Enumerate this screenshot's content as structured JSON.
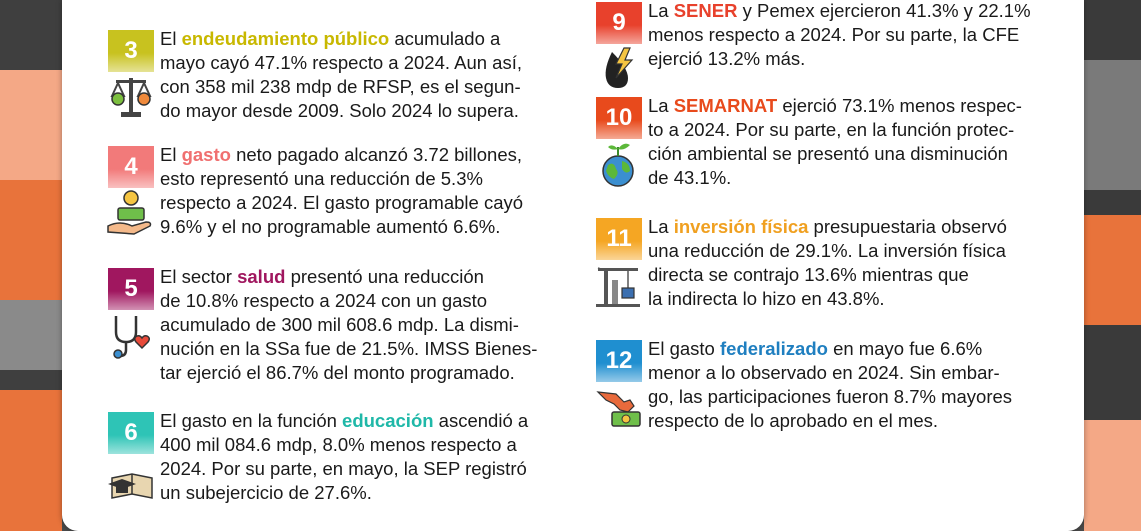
{
  "items": [
    {
      "number": "3",
      "icon": "scale-money-icon",
      "color": "#c8c21f",
      "highlight_color": "#c8b800",
      "lines": [
        {
          "pre": "El ",
          "hl": "endeudamiento público",
          "post": " acumulado a"
        },
        {
          "pre": "mayo cayó 47.1% respecto a 2024. Aun así,",
          "hl": "",
          "post": ""
        },
        {
          "pre": "con 358 mil 238 mdp de RFSP, es el segun-",
          "hl": "",
          "post": ""
        },
        {
          "pre": "do mayor desde 2009. Solo 2024 lo supera.",
          "hl": "",
          "post": ""
        }
      ]
    },
    {
      "number": "4",
      "icon": "hand-money-icon",
      "color": "#f27a7a",
      "highlight_color": "#f07070",
      "lines": [
        {
          "pre": "El ",
          "hl": "gasto",
          "post": " neto pagado alcanzó 3.72 billones,"
        },
        {
          "pre": "esto representó una reducción de 5.3%",
          "hl": "",
          "post": ""
        },
        {
          "pre": "respecto a 2024. El gasto programable cayó",
          "hl": "",
          "post": ""
        },
        {
          "pre": "9.6% y el no programable aumentó 6.6%.",
          "hl": "",
          "post": ""
        }
      ]
    },
    {
      "number": "5",
      "icon": "stethoscope-heart-icon",
      "color": "#a0175f",
      "highlight_color": "#a0175f",
      "lines": [
        {
          "pre": "El sector ",
          "hl": "salud",
          "post": " presentó una reducción"
        },
        {
          "pre": "de 10.8% respecto a 2024 con un gasto",
          "hl": "",
          "post": ""
        },
        {
          "pre": "acumulado de 300 mil 608.6 mdp. La dismi-",
          "hl": "",
          "post": ""
        },
        {
          "pre": "nución en la SSa fue de 21.5%. IMSS Bienes-",
          "hl": "",
          "post": ""
        },
        {
          "pre": "tar ejerció el 86.7% del monto programado.",
          "hl": "",
          "post": ""
        }
      ]
    },
    {
      "number": "6",
      "icon": "book-graduation-icon",
      "color": "#2ec4b6",
      "highlight_color": "#1fb8a8",
      "lines": [
        {
          "pre": "El gasto en la función ",
          "hl": "educación",
          "post": " ascendió a"
        },
        {
          "pre": "400 mil 084.6 mdp, 8.0% menos respecto a",
          "hl": "",
          "post": ""
        },
        {
          "pre": "2024. Por su parte, en mayo, la SEP registró",
          "hl": "",
          "post": ""
        },
        {
          "pre": "un subejercicio de 27.6%.",
          "hl": "",
          "post": ""
        }
      ]
    },
    {
      "number": "9",
      "icon": "energy-oil-icon",
      "color": "#e8412c",
      "highlight_color": "#e8412c",
      "lines": [
        {
          "pre": "La ",
          "hl": "SENER",
          "post": " y Pemex ejercieron 41.3% y 22.1%"
        },
        {
          "pre": "menos respecto a 2024. Por su parte, la CFE",
          "hl": "",
          "post": ""
        },
        {
          "pre": "ejerció 13.2% más.",
          "hl": "",
          "post": ""
        }
      ]
    },
    {
      "number": "10",
      "icon": "globe-plant-icon",
      "color": "#e84a1c",
      "highlight_color": "#e84a1c",
      "lines": [
        {
          "pre": "La ",
          "hl": "SEMARNAT",
          "post": " ejerció 73.1%  menos respec-"
        },
        {
          "pre": "to a 2024. Por su parte, en la función protec-",
          "hl": "",
          "post": ""
        },
        {
          "pre": "ción ambiental se presentó una disminución",
          "hl": "",
          "post": ""
        },
        {
          "pre": "de 43.1%.",
          "hl": "",
          "post": ""
        }
      ]
    },
    {
      "number": "11",
      "icon": "construction-crane-icon",
      "color": "#f5a623",
      "highlight_color": "#f0a020",
      "lines": [
        {
          "pre": "La ",
          "hl": "inversión física",
          "post": " presupuestaria observó"
        },
        {
          "pre": "una reducción de 29.1%. La inversión física",
          "hl": "",
          "post": ""
        },
        {
          "pre": "directa se contrajo 13.6% mientras que",
          "hl": "",
          "post": ""
        },
        {
          "pre": "la indirecta lo hizo en 43.8%.",
          "hl": "",
          "post": ""
        }
      ]
    },
    {
      "number": "12",
      "icon": "mexico-map-money-icon",
      "color": "#1f8fd0",
      "highlight_color": "#1f7fc0",
      "lines": [
        {
          "pre": "El gasto ",
          "hl": "federalizado",
          "post": " en mayo fue 6.6%"
        },
        {
          "pre": "menor a lo observado en 2024. Sin embar-",
          "hl": "",
          "post": ""
        },
        {
          "pre": "go, las participaciones fueron 8.7% mayores",
          "hl": "",
          "post": ""
        },
        {
          "pre": "respecto de lo aprobado en el mes.",
          "hl": "",
          "post": ""
        }
      ]
    }
  ]
}
